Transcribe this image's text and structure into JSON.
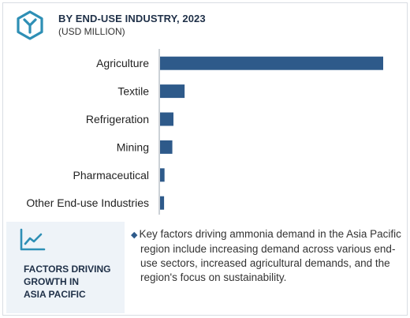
{
  "header": {
    "title": "BY END-USE INDUSTRY, 2023",
    "subtitle": "(USD MILLION)",
    "logo_icon": "hexagon-y-logo-icon"
  },
  "colors": {
    "bar": "#2e5a8a",
    "title": "#1f3048",
    "panel": "#eef3f8",
    "accent": "#2e5a8a"
  },
  "chart_data": {
    "type": "bar",
    "orientation": "horizontal",
    "categories": [
      "Agriculture",
      "Textile",
      "Refrigeration",
      "Mining",
      "Pharmaceutical",
      "Other End-use Industries"
    ],
    "values": [
      100,
      11,
      6,
      5.5,
      2,
      1.8
    ],
    "grid": false,
    "legend": "none"
  },
  "footer": {
    "heading": "FACTORS DRIVING\nGROWTH IN\nASIA PACIFIC",
    "icon": "trend-line-chart-icon",
    "bullet_icon": "diamond-bullet-icon",
    "text": "Key factors driving ammonia demand in the Asia Pacific region include increasing demand across various end-use sectors, increased agricultural demands, and the region's focus on sustainability."
  }
}
